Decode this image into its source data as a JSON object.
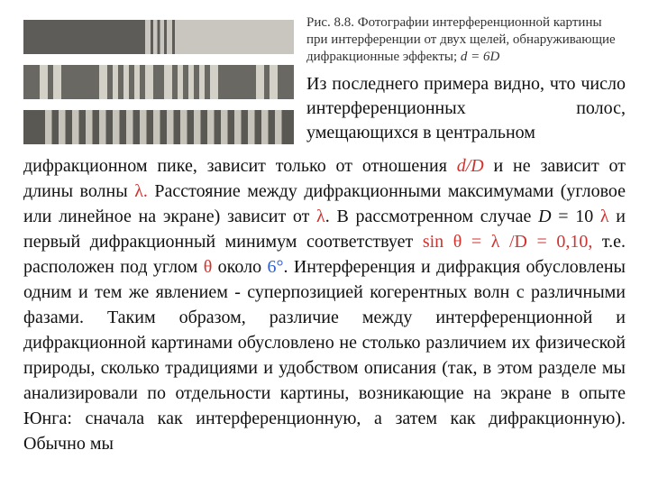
{
  "figure": {
    "caption_plain": "Рис. 8.8. Фотографии интерференционной картины при интерференции от двух щелей, обнаруживающие дифракционные эффекты; ",
    "caption_eq": "d = 6D",
    "strips": [
      {
        "dark": "#5e5c58",
        "light": "#c9c6bf",
        "stops": "0 44,0 45,1 47,0 48,1 49.5,0 50.5,1 52,0 53,1 55,0 56,1 100"
      },
      {
        "dark": "#6a6863",
        "light": "#d3d0c8",
        "stops": "0 6,1 9,0 11,1 14,0 28,1 31,0 33,1 35,0 37,1 39,0 41,1 43,0 45,1 48,0 52,1 55,0 57,1 59,0 61,1 63,0 65,1 67,0 69,1 72,0 86,1 89,0 91,1 94,0 100"
      },
      {
        "dark": "#5a5853",
        "light": "#c6c3bb",
        "stops": "0 8,1 10.5,0 13,1 15.5,0 18,1 20.5,0 23,1 25.5,0 28,1 30.5,0 33,1 35.5,0 38,1 40.5,0 43,1 45.5,0 48,1 50.5,0 53,1 55.5,0 58,1 60.5,0 63,1 65.5,0 68,1 70.5,0 73,1 75.5,0 78,1 80.5,0 83,1 85.5,0 88,1 90.5,0 93,1 95.5,0 100"
      }
    ]
  },
  "intro_text": "Из последнего примера видно, что число интерференционных полос, умещающихся в центральном",
  "body_parts": {
    "p1a": "дифракционном пике, зависит только от отношения ",
    "dD": "d/D",
    "p1b": " и не зависит от длины волны ",
    "lam1": "λ.",
    "p1c": " Расстояние между дифракционными максимумами (угловое или линейное на экране) зависит от ",
    "lam2": "λ",
    "p1d": ". В рассмотренном случае ",
    "Dletter": "D",
    "p1e": " = 10 ",
    "lam3": "λ",
    "p1f": " и первый дифракционный минимум соответствует ",
    "sineq": "sin θ = λ /D = 0,10,",
    "p1g": "   т.е.  расположен под углом ",
    "theta": "θ",
    "p1h": " около ",
    "angle": "6°",
    "p1i": ". Интерференция и дифракция обусловлены одним и тем же явлением - суперпозицией когерентных волн с различными фазами. Таким образом, различие между интерференционной и дифракционной картинами обусловлено не столько различием их физической природы, сколько традициями и удобством описания (так, в этом разделе мы анализировали по отдельности картины, возникающие на экране в опыте Юнга: сначала как интерференционную, а затем как дифракционную). Обычно мы"
  }
}
